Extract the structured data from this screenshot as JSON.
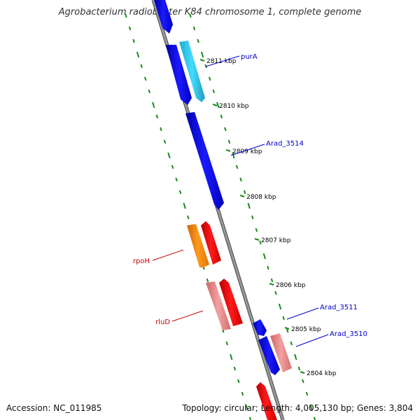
{
  "title": "Agrobacterium radiobacter K84 chromosome 1, complete genome",
  "footer": {
    "accession": "Accession: NC_011985",
    "summary": "Topology: circular; Length: 4,005,130 bp; Genes: 3,804"
  },
  "colors": {
    "backbone": "#8c8c8c",
    "tick_dash": "#1a8a1a",
    "forward_gene": "#0000e6",
    "forward_gene_alt": "#33ccee",
    "reverse_gene": "#ee0000",
    "reverse_gene_alt": "#ff8800",
    "reverse_gene_light": "#ee8888",
    "label_forward": "#0000cc",
    "label_reverse": "#cc0000"
  },
  "ticks": [
    "2811 kbp",
    "2810 kbp",
    "2809 kbp",
    "2808 kbp",
    "2807 kbp",
    "2806 kbp",
    "2805 kbp",
    "2804 kbp"
  ],
  "gene_labels": [
    {
      "name": "purA",
      "strand": "forward"
    },
    {
      "name": "Arad_3514",
      "strand": "forward"
    },
    {
      "name": "rpoH",
      "strand": "reverse"
    },
    {
      "name": "rluD",
      "strand": "reverse"
    },
    {
      "name": "Arad_3511",
      "strand": "forward"
    },
    {
      "name": "Arad_3510",
      "strand": "forward"
    }
  ]
}
